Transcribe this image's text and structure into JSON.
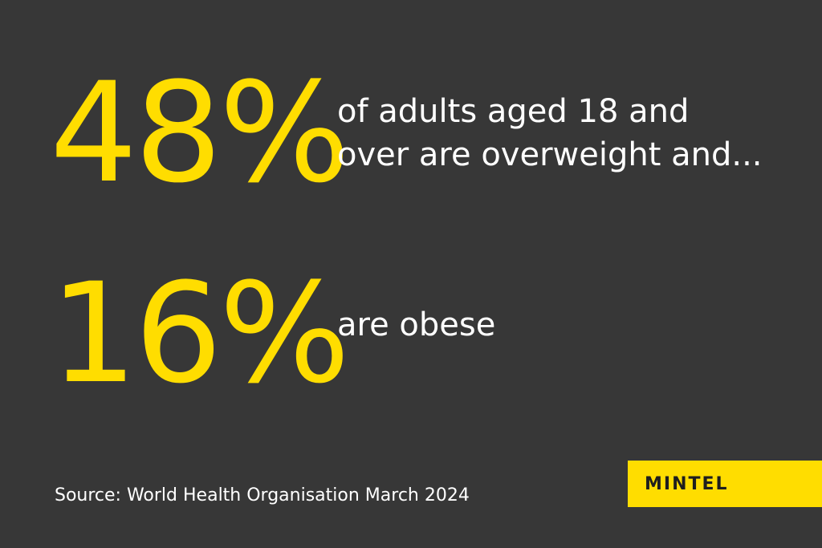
{
  "stats": [
    {
      "value": "48%",
      "description_line1": "of adults aged 18 and",
      "description_line2": "over are overweight and..."
    },
    {
      "value": "16%",
      "description_line1": "are obese"
    }
  ],
  "source": "Source: World Health Organisation March 2024",
  "brand": {
    "name": "MINTEL"
  },
  "colors": {
    "background": "#373737",
    "accent": "#FFDD00",
    "text": "#FFFFFF",
    "logo_text": "#1E1E1E"
  }
}
